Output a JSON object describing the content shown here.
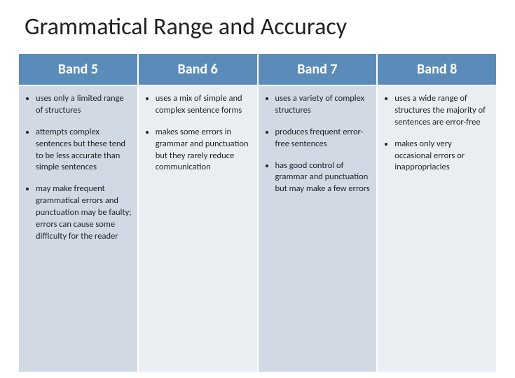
{
  "title": "Grammatical Range and Accuracy",
  "colors": {
    "header_bg": "#5b8cb9",
    "col_bg_odd": "#d1d9e4",
    "col_bg_even": "#eaeef3"
  },
  "table": {
    "type": "table",
    "columns": [
      {
        "label": "Band 5"
      },
      {
        "label": "Band 6"
      },
      {
        "label": "Band 7"
      },
      {
        "label": "Band 8"
      }
    ],
    "rows": [
      {
        "cells": [
          {
            "items": [
              "uses only a limited range of structures",
              "attempts complex sentences but these tend to be less accurate than simple sentences",
              "may make frequent grammatical errors and punctuation may be faulty; errors can cause some difficulty for the reader"
            ]
          },
          {
            "items": [
              "uses a mix of simple and complex sentence forms",
              "makes some errors in grammar and punctuation but they rarely reduce communication"
            ]
          },
          {
            "items": [
              "uses a variety of complex structures",
              "produces frequent error-free sentences",
              "has good control of grammar and punctuation but may make a few errors"
            ]
          },
          {
            "items": [
              "uses a wide range of structures the majority of sentences are error-free",
              "makes only very occasional errors or inappropriacies"
            ]
          }
        ]
      }
    ]
  }
}
